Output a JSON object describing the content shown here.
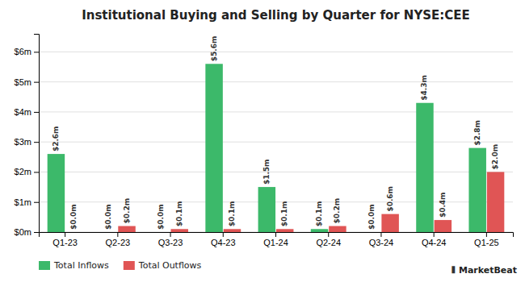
{
  "chart_data": {
    "type": "bar",
    "title": "Institutional Buying and Selling by Quarter for NYSE:CEE",
    "categories": [
      "Q1-23",
      "Q2-23",
      "Q3-23",
      "Q4-23",
      "Q1-24",
      "Q2-24",
      "Q3-24",
      "Q4-24",
      "Q1-25"
    ],
    "series": [
      {
        "name": "Total Inflows",
        "color": "#3cb96a",
        "values": [
          2.6,
          0.0,
          0.0,
          5.6,
          1.5,
          0.1,
          0.0,
          4.3,
          2.8
        ],
        "value_labels": [
          "$2.6m",
          "$0.0m",
          "$0.0m",
          "$5.6m",
          "$1.5m",
          "$0.1m",
          "$0.0m",
          "$4.3m",
          "$2.8m"
        ]
      },
      {
        "name": "Total Outflows",
        "color": "#e05555",
        "values": [
          0.0,
          0.2,
          0.1,
          0.1,
          0.1,
          0.2,
          0.6,
          0.4,
          2.0
        ],
        "value_labels": [
          "$0.0m",
          "$0.2m",
          "$0.1m",
          "$0.1m",
          "$0.1m",
          "$0.2m",
          "$0.6m",
          "$0.4m",
          "$2.0m"
        ]
      }
    ],
    "ylim": [
      0,
      6.6
    ],
    "yticks": [
      {
        "value": 0,
        "label": "$0m"
      },
      {
        "value": 1,
        "label": "$1m"
      },
      {
        "value": 2,
        "label": "$2m"
      },
      {
        "value": 3,
        "label": "$3m"
      },
      {
        "value": 4,
        "label": "$4m"
      },
      {
        "value": 5,
        "label": "$5m"
      },
      {
        "value": 6,
        "label": "$6m"
      }
    ],
    "grid": true,
    "legend": "bottom",
    "data_labels": true,
    "annotations": [
      "⫴ MarketBeat"
    ]
  }
}
